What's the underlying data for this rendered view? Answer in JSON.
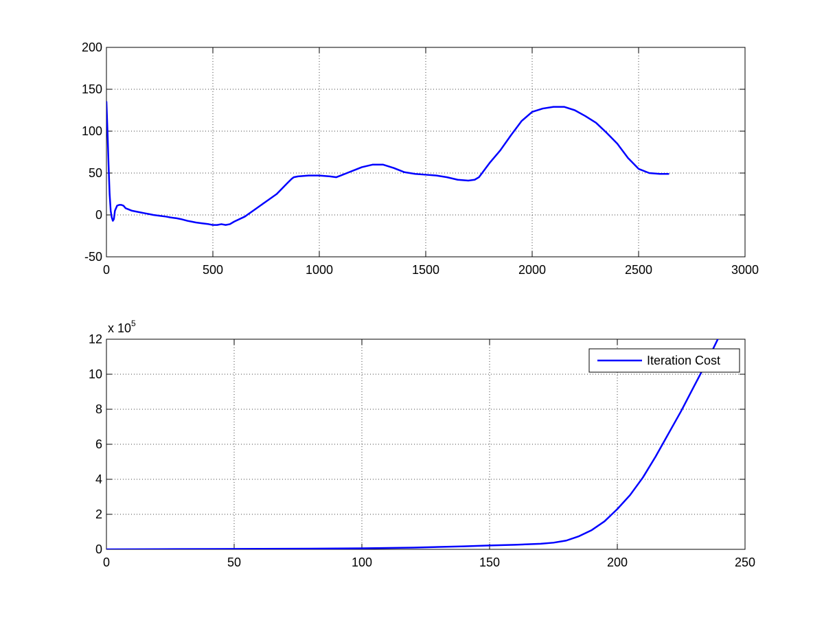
{
  "chart_data": [
    {
      "type": "line",
      "xlim": [
        0,
        3000
      ],
      "ylim": [
        -50,
        200
      ],
      "xticks": [
        0,
        500,
        1000,
        1500,
        2000,
        2500,
        3000
      ],
      "yticks": [
        -50,
        0,
        50,
        100,
        150,
        200
      ],
      "xtick_labels": [
        "0",
        "500",
        "1000",
        "1500",
        "2000",
        "2500",
        "3000"
      ],
      "ytick_labels": [
        "-50",
        "0",
        "50",
        "100",
        "150",
        "200"
      ],
      "grid": true,
      "series": [
        {
          "color": "#0000ff",
          "x": [
            0,
            5,
            10,
            15,
            20,
            25,
            30,
            35,
            40,
            50,
            60,
            70,
            80,
            90,
            100,
            110,
            120,
            140,
            160,
            180,
            200,
            220,
            250,
            280,
            300,
            330,
            350,
            380,
            400,
            420,
            450,
            480,
            500,
            520,
            540,
            560,
            580,
            600,
            650,
            700,
            750,
            800,
            850,
            870,
            880,
            900,
            950,
            1000,
            1050,
            1080,
            1100,
            1150,
            1200,
            1250,
            1300,
            1350,
            1400,
            1450,
            1500,
            1550,
            1600,
            1650,
            1700,
            1730,
            1750,
            1800,
            1850,
            1900,
            1950,
            2000,
            2050,
            2100,
            2150,
            2200,
            2250,
            2300,
            2350,
            2400,
            2450,
            2500,
            2550,
            2600,
            2640
          ],
          "y": [
            135,
            100,
            60,
            25,
            5,
            -3,
            -7,
            -5,
            5,
            11,
            12,
            12,
            11,
            8,
            7,
            6,
            5,
            4,
            3,
            2,
            1,
            0,
            -1,
            -2,
            -3,
            -4,
            -5,
            -7,
            -8,
            -9,
            -10,
            -11,
            -12,
            -12,
            -11,
            -12,
            -11,
            -8,
            -2,
            7,
            16,
            25,
            38,
            43,
            45,
            46,
            47,
            47,
            46,
            45,
            47,
            52,
            57,
            60,
            60,
            56,
            51,
            49,
            48,
            47,
            45,
            42,
            41,
            42,
            45,
            62,
            77,
            95,
            112,
            123,
            127,
            129,
            129,
            125,
            118,
            110,
            98,
            85,
            68,
            55,
            50,
            49,
            49
          ]
        }
      ]
    },
    {
      "type": "line",
      "xlim": [
        0,
        250
      ],
      "ylim": [
        0,
        12
      ],
      "xticks": [
        0,
        50,
        100,
        150,
        200,
        250
      ],
      "yticks": [
        0,
        2,
        4,
        6,
        8,
        10,
        12
      ],
      "xtick_labels": [
        "0",
        "50",
        "100",
        "150",
        "200",
        "250"
      ],
      "ytick_labels": [
        "0",
        "2",
        "4",
        "6",
        "8",
        "10",
        "12"
      ],
      "y_scale_label": "x 10",
      "y_scale_exponent": "5",
      "grid": true,
      "legend": {
        "position": "top-right",
        "entries": [
          "Iteration Cost"
        ]
      },
      "series": [
        {
          "name": "Iteration Cost",
          "color": "#0000ff",
          "x": [
            0,
            20,
            40,
            60,
            80,
            100,
            120,
            140,
            150,
            160,
            170,
            175,
            180,
            185,
            190,
            195,
            200,
            205,
            210,
            215,
            220,
            225,
            230,
            235,
            240
          ],
          "y": [
            0,
            0.01,
            0.02,
            0.03,
            0.04,
            0.06,
            0.1,
            0.17,
            0.22,
            0.26,
            0.32,
            0.38,
            0.5,
            0.75,
            1.1,
            1.6,
            2.3,
            3.1,
            4.1,
            5.3,
            6.6,
            7.9,
            9.3,
            10.7,
            12.2
          ]
        }
      ]
    }
  ]
}
